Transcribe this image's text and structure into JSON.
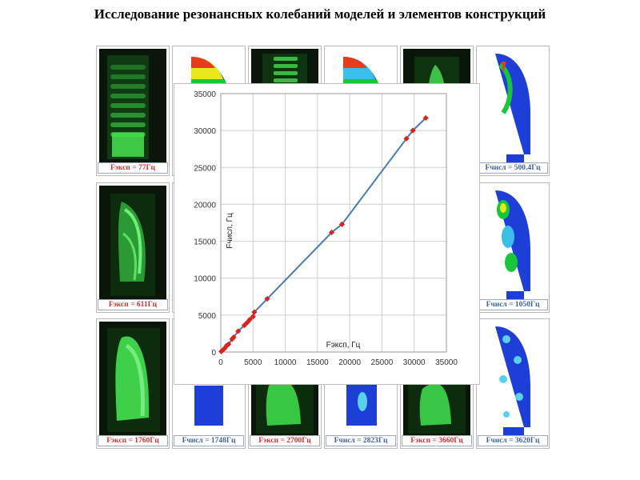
{
  "page": {
    "title": "Исследование резонансных колебаний моделей и элементов конструкций"
  },
  "cells": [
    {
      "kind": "photo",
      "caption": "Fэксп = 77Гц",
      "variant": 1
    },
    {
      "kind": "sim",
      "caption": "",
      "variant": 1
    },
    {
      "kind": "photo",
      "caption": "",
      "variant": 2
    },
    {
      "kind": "sim",
      "caption": "",
      "variant": 2
    },
    {
      "kind": "photo",
      "caption": "",
      "variant": 3
    },
    {
      "kind": "sim",
      "caption": "Fчисл = 500.4Гц",
      "variant": 3
    },
    {
      "kind": "photo",
      "caption": "Fэксп = 611Гц",
      "variant": 4
    },
    {
      "kind": "sim",
      "caption": "",
      "variant": 4
    },
    {
      "kind": "photo",
      "caption": "",
      "variant": 5
    },
    {
      "kind": "sim",
      "caption": "",
      "variant": 5
    },
    {
      "kind": "photo",
      "caption": "",
      "variant": 6
    },
    {
      "kind": "sim",
      "caption": "Fчисл = 1050Гц",
      "variant": 6
    },
    {
      "kind": "photo",
      "caption": "Fэксп = 1760Гц",
      "variant": 7
    },
    {
      "kind": "sim",
      "caption": "Fчисл = 1748Гц",
      "variant": 7
    },
    {
      "kind": "photo",
      "caption": "Fэксп = 2700Гц",
      "variant": 8
    },
    {
      "kind": "sim",
      "caption": "Fчисл = 2823Гц",
      "variant": 8
    },
    {
      "kind": "photo",
      "caption": "Fэксп = 3660Гц",
      "variant": 9
    },
    {
      "kind": "sim",
      "caption": "Fчисл = 3620Гц",
      "variant": 9
    }
  ],
  "colors": {
    "line": "#4a7ab5",
    "marker": "#d9241c",
    "grid": "#d0d0d0",
    "exp_caption": "#d13030",
    "num_caption": "#4060a0"
  },
  "chart_data": {
    "type": "scatter",
    "title": "",
    "xlabel": "Fэксп, Гц",
    "ylabel": "Fчисл, Гц",
    "xlim": [
      0,
      35000
    ],
    "ylim": [
      0,
      35000
    ],
    "x_ticks": [
      "0",
      "5000",
      "10000",
      "15000",
      "20000",
      "25000",
      "30000",
      "35000"
    ],
    "y_ticks": [
      "0",
      "5000",
      "10000",
      "15000",
      "20000",
      "25000",
      "30000",
      "35000"
    ],
    "grid": true,
    "legend": "none",
    "series": [
      {
        "x": [
          77,
          300,
          611,
          900,
          1200,
          1760,
          2000,
          2700,
          3660,
          4100,
          4500,
          5000,
          5200,
          7200,
          17200,
          18800,
          28800,
          29800,
          31800
        ],
        "y": [
          80,
          250,
          500,
          850,
          1050,
          1748,
          2000,
          2823,
          3620,
          4000,
          4400,
          4800,
          5400,
          7200,
          16200,
          17300,
          28900,
          30000,
          31700
        ]
      }
    ]
  }
}
